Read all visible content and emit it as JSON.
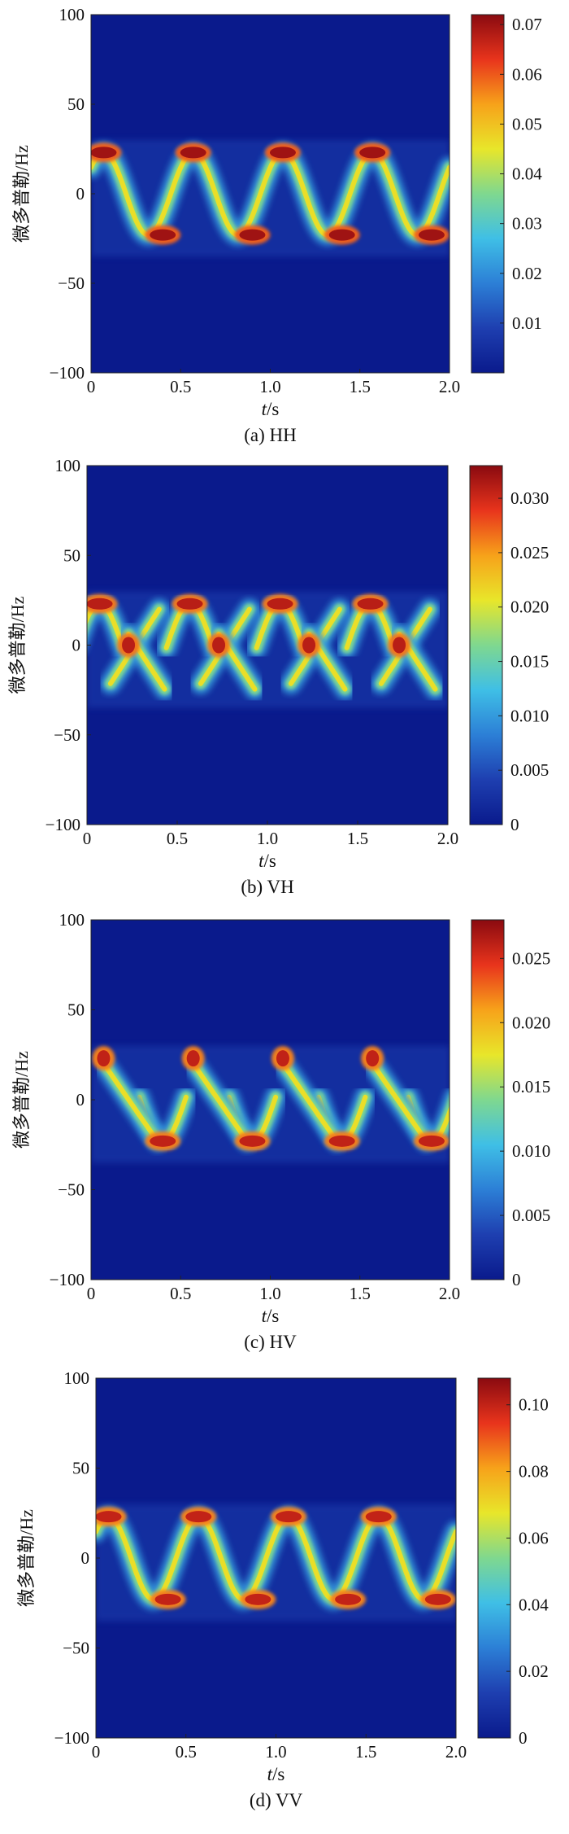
{
  "chart_data": [
    {
      "type": "heatmap",
      "title": "",
      "caption": "(a) HH",
      "xlabel_var": "t",
      "xlabel_unit": "/s",
      "ylabel": "微多普勒/Hz",
      "xlim": [
        0,
        2.0
      ],
      "ylim": [
        -100,
        100
      ],
      "xticks": [
        0,
        0.5,
        1.0,
        1.5,
        2.0
      ],
      "xtick_labels": [
        "0",
        "0.5",
        "1.0",
        "1.5",
        "2.0"
      ],
      "yticks": [
        100,
        50,
        0,
        -50,
        -100
      ],
      "ytick_labels": [
        "100",
        "50",
        "0",
        "−50",
        "−100"
      ],
      "colorbar": {
        "min": 0,
        "max": 0.072,
        "ticks": [
          0.01,
          0.02,
          0.03,
          0.04,
          0.05,
          0.06,
          0.07
        ],
        "tick_labels": [
          "0.01",
          "0.02",
          "0.03",
          "0.04",
          "0.05",
          "0.06",
          "0.07"
        ]
      },
      "signal": {
        "description": "sinusoidal micro-Doppler track",
        "period_s": 0.5,
        "amplitude_hz": 23,
        "peak_value": 0.07,
        "peaks": [
          {
            "t": 0.07,
            "f": 23
          },
          {
            "t": 0.57,
            "f": 23
          },
          {
            "t": 1.07,
            "f": 23
          },
          {
            "t": 1.57,
            "f": 23
          },
          {
            "t": 0.4,
            "f": -23
          },
          {
            "t": 0.9,
            "f": -23
          },
          {
            "t": 1.4,
            "f": -23
          },
          {
            "t": 1.9,
            "f": -23
          }
        ]
      }
    },
    {
      "type": "heatmap",
      "title": "",
      "caption": "(b) VH",
      "xlabel_var": "t",
      "xlabel_unit": "/s",
      "ylabel": "微多普勒/Hz",
      "xlim": [
        0,
        2.0
      ],
      "ylim": [
        -100,
        100
      ],
      "xticks": [
        0,
        0.5,
        1.0,
        1.5,
        2.0
      ],
      "xtick_labels": [
        "0",
        "0.5",
        "1.0",
        "1.5",
        "2.0"
      ],
      "yticks": [
        100,
        50,
        0,
        -50,
        -100
      ],
      "ytick_labels": [
        "100",
        "50",
        "0",
        "−50",
        "−100"
      ],
      "colorbar": {
        "min": 0,
        "max": 0.033,
        "ticks": [
          0,
          0.005,
          0.01,
          0.015,
          0.02,
          0.025,
          0.03
        ],
        "tick_labels": [
          "0",
          "0.005",
          "0.010",
          "0.015",
          "0.020",
          "0.025",
          "0.030"
        ]
      },
      "signal": {
        "description": "upper arcs with crossing diagonal lobes",
        "period_s": 0.5,
        "amplitude_hz": 23,
        "peak_value": 0.031,
        "peaks": [
          {
            "t": 0.07,
            "f": 23
          },
          {
            "t": 0.57,
            "f": 23
          },
          {
            "t": 1.07,
            "f": 23
          },
          {
            "t": 1.57,
            "f": 23
          },
          {
            "t": 0.23,
            "f": 0
          },
          {
            "t": 0.73,
            "f": 0
          },
          {
            "t": 1.23,
            "f": 0
          },
          {
            "t": 1.73,
            "f": 0
          }
        ]
      }
    },
    {
      "type": "heatmap",
      "title": "",
      "caption": "(c) HV",
      "xlabel_var": "t",
      "xlabel_unit": "/s",
      "ylabel": "微多普勒/Hz",
      "xlim": [
        0,
        2.0
      ],
      "ylim": [
        -100,
        100
      ],
      "xticks": [
        0,
        0.5,
        1.0,
        1.5,
        2.0
      ],
      "xtick_labels": [
        "0",
        "0.5",
        "1.0",
        "1.5",
        "2.0"
      ],
      "yticks": [
        100,
        50,
        0,
        -50,
        -100
      ],
      "ytick_labels": [
        "100",
        "50",
        "0",
        "−50",
        "−100"
      ],
      "colorbar": {
        "min": 0,
        "max": 0.028,
        "ticks": [
          0,
          0.005,
          0.01,
          0.015,
          0.02,
          0.025
        ],
        "tick_labels": [
          "0",
          "0.005",
          "0.010",
          "0.015",
          "0.020",
          "0.025"
        ]
      },
      "signal": {
        "description": "lower arcs with faint upper lobes",
        "period_s": 0.5,
        "amplitude_hz": 23,
        "peak_value": 0.026,
        "peaks": [
          {
            "t": 0.4,
            "f": -23
          },
          {
            "t": 0.9,
            "f": -23
          },
          {
            "t": 1.4,
            "f": -23
          },
          {
            "t": 1.9,
            "f": -23
          },
          {
            "t": 0.07,
            "f": 23
          },
          {
            "t": 0.57,
            "f": 23
          },
          {
            "t": 1.07,
            "f": 23
          },
          {
            "t": 1.57,
            "f": 23
          }
        ]
      }
    },
    {
      "type": "heatmap",
      "title": "",
      "caption": "(d) VV",
      "xlabel_var": "t",
      "xlabel_unit": "/s",
      "ylabel": "微多普勒/Hz",
      "xlim": [
        0,
        2.0
      ],
      "ylim": [
        -100,
        100
      ],
      "xticks": [
        0,
        0.5,
        1.0,
        1.5,
        2.0
      ],
      "xtick_labels": [
        "0",
        "0.5",
        "1.0",
        "1.5",
        "2.0"
      ],
      "yticks": [
        100,
        50,
        0,
        -50,
        -100
      ],
      "ytick_labels": [
        "100",
        "50",
        "0",
        "−50",
        "−100"
      ],
      "colorbar": {
        "min": 0,
        "max": 0.108,
        "ticks": [
          0,
          0.02,
          0.04,
          0.06,
          0.08,
          0.1
        ],
        "tick_labels": [
          "0",
          "0.02",
          "0.04",
          "0.06",
          "0.08",
          "0.10"
        ]
      },
      "signal": {
        "description": "sinusoidal micro-Doppler track",
        "period_s": 0.5,
        "amplitude_hz": 23,
        "peak_value": 0.1,
        "peaks": [
          {
            "t": 0.07,
            "f": 23
          },
          {
            "t": 0.57,
            "f": 23
          },
          {
            "t": 1.07,
            "f": 23
          },
          {
            "t": 1.57,
            "f": 23
          },
          {
            "t": 0.4,
            "f": -23
          },
          {
            "t": 0.9,
            "f": -23
          },
          {
            "t": 1.4,
            "f": -23
          },
          {
            "t": 1.9,
            "f": -23
          }
        ]
      }
    }
  ],
  "colormap": [
    "#0a1a8c",
    "#1e3fb0",
    "#2c7fd6",
    "#3fbfe6",
    "#7fd88f",
    "#e8e62a",
    "#f7a21a",
    "#e8341c",
    "#8a0a10"
  ]
}
